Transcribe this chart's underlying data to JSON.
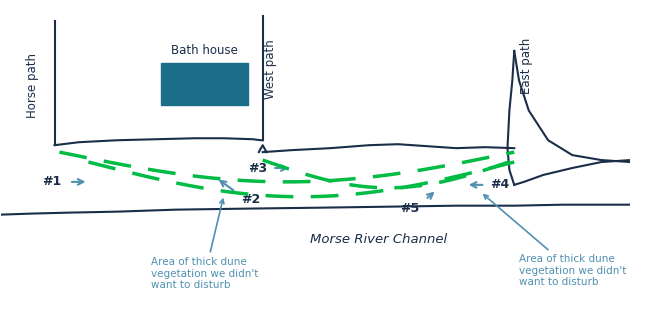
{
  "background_color": "#ffffff",
  "coastline_color": "#1a2e4a",
  "dune_path_color": "#00bb44",
  "bath_house_color": "#1a6e8a",
  "arrow_color": "#5090b0",
  "label_color": "#1a2e4a",
  "vegetation_label_color": "#5090b0",
  "labels": {
    "horse_path": "Horse path",
    "bath_house": "Bath house",
    "west_path": "West path",
    "east_path": "East path",
    "morse_river": "Morse River Channel",
    "veg_left": "Area of thick dune\nvegetation we didn't\nwant to disturb",
    "veg_right": "Area of thick dune\nvegetation we didn't\nwant to disturb"
  }
}
